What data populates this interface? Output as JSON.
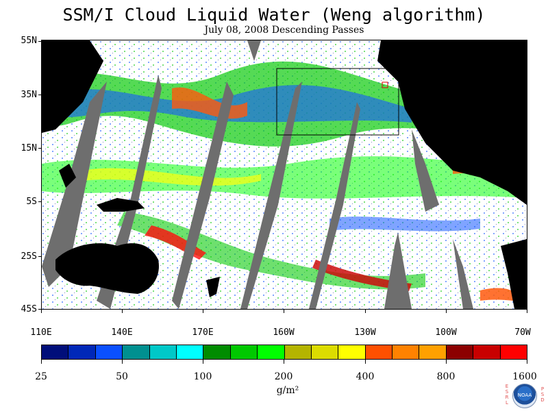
{
  "title": "SSM/I Cloud Liquid Water (Weng algorithm)",
  "subtitle": "July 08, 2008  Descending Passes",
  "map": {
    "lat_labels": [
      "55N",
      "35N",
      "15N",
      "5S",
      "25S",
      "45S"
    ],
    "lon_labels": [
      "110E",
      "140E",
      "170E",
      "160W",
      "130W",
      "100W",
      "70W"
    ]
  },
  "colorbar": {
    "labels": [
      "25",
      "50",
      "100",
      "200",
      "400",
      "800",
      "1600"
    ],
    "units": "g/m²",
    "colors": [
      "#000e7a",
      "#0028b8",
      "#0a50ff",
      "#009090",
      "#00c8c8",
      "#00ffff",
      "#008c00",
      "#00c800",
      "#00ff00",
      "#b4b400",
      "#dcdc00",
      "#ffff00",
      "#ff5000",
      "#ff8200",
      "#ffa000",
      "#8c0000",
      "#c80000",
      "#ff0000"
    ]
  },
  "logo": {
    "left_text": "ESRL",
    "right_text": "PSD",
    "badge": "NOAA"
  }
}
